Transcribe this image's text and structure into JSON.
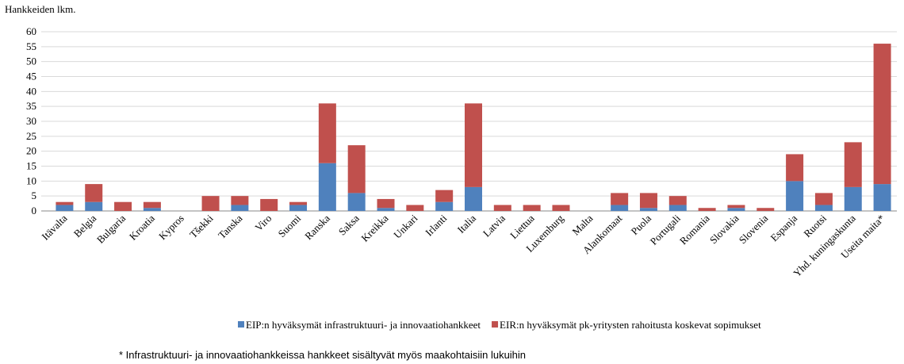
{
  "chart_data": {
    "type": "stacked_bar",
    "y_label": "Hankkeiden lkm.",
    "categories": [
      "Itävalta",
      "Belgia",
      "Bulgaria",
      "Kroatia",
      "Kypros",
      "Tšekki",
      "Tanska",
      "Viro",
      "Suomi",
      "Ranska",
      "Saksa",
      "Kreikka",
      "Unkari",
      "Irlanti",
      "Italia",
      "Latvia",
      "Liettua",
      "Luxemburg",
      "Malta",
      "Alankomaat",
      "Puola",
      "Portugali",
      "Romania",
      "Slovakia",
      "Slovenia",
      "Espanja",
      "Ruotsi",
      "Yhd. kuningaskunta",
      "Useita maita*"
    ],
    "series": [
      {
        "name": "EIP:n hyväksymät infrastruktuuri- ja innovaatiohankkeet",
        "color": "#4f81bd",
        "values": [
          2,
          3,
          0,
          1,
          0,
          0,
          2,
          0,
          2,
          16,
          6,
          1,
          0,
          3,
          8,
          0,
          0,
          0,
          0,
          2,
          1,
          2,
          0,
          1,
          0,
          10,
          2,
          8,
          9
        ]
      },
      {
        "name": "EIR:n hyväksymät pk-yritysten rahoitusta koskevat sopimukset",
        "color": "#c0504d",
        "values": [
          1,
          6,
          3,
          2,
          0,
          5,
          3,
          4,
          1,
          20,
          16,
          3,
          2,
          4,
          28,
          2,
          2,
          2,
          0,
          4,
          5,
          3,
          1,
          1,
          1,
          9,
          4,
          15,
          47
        ]
      }
    ],
    "ylim": [
      0,
      60
    ],
    "yticks": [
      0,
      5,
      10,
      15,
      20,
      25,
      30,
      35,
      40,
      45,
      50,
      55,
      60
    ],
    "grid": true,
    "legend": "bottom",
    "footnote": "* Infrastruktuuri- ja innovaatiohankkeissa  hankkeet sisältyvät myös maakohtaisiin lukuihin"
  }
}
